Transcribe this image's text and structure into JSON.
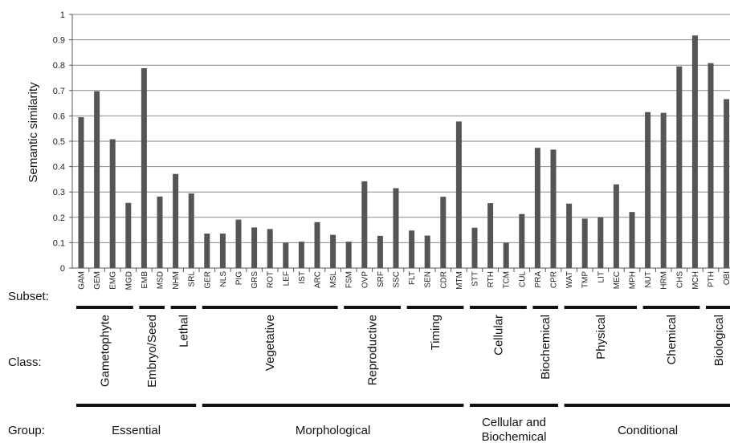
{
  "chart_data": {
    "type": "bar",
    "ylabel": "Semantic similarity",
    "ylim": [
      0,
      1
    ],
    "yticks": [
      "0",
      "0.1",
      "0.2",
      "0.3",
      "0.4",
      "0.5",
      "0.6",
      "0.7",
      "0.8",
      "0.9",
      "1"
    ],
    "grid": true,
    "bar_color": "#555555",
    "categories": [
      "GAM",
      "GEM",
      "EMG",
      "MGD",
      "EMB",
      "MSD",
      "NHM",
      "SRL",
      "GER",
      "NLS",
      "PIG",
      "GRS",
      "ROT",
      "LEF",
      "IST",
      "ARC",
      "MSL",
      "FSM",
      "OVP",
      "SRF",
      "SSC",
      "FLT",
      "SEN",
      "CDR",
      "MTM",
      "STT",
      "RTH",
      "TCM",
      "CUL",
      "PRA",
      "CPR",
      "WAT",
      "TMP",
      "LIT",
      "MEC",
      "MPH",
      "NUT",
      "HRM",
      "CHS",
      "MCH",
      "PTH",
      "OBI"
    ],
    "values": [
      0.595,
      0.697,
      0.508,
      0.257,
      0.788,
      0.282,
      0.371,
      0.294,
      0.136,
      0.136,
      0.191,
      0.16,
      0.154,
      0.1,
      0.104,
      0.181,
      0.131,
      0.104,
      0.342,
      0.127,
      0.315,
      0.148,
      0.128,
      0.281,
      0.578,
      0.159,
      0.256,
      0.1,
      0.213,
      0.474,
      0.467,
      0.254,
      0.195,
      0.2,
      0.33,
      0.221,
      0.615,
      0.612,
      0.795,
      0.917,
      0.808,
      0.666
    ]
  },
  "row_labels": {
    "subset": "Subset:",
    "class": "Class:",
    "group": "Group:"
  },
  "classes": [
    {
      "label": "Gametophyte",
      "from": 0,
      "to": 3
    },
    {
      "label": "Embryo/Seed",
      "from": 4,
      "to": 5
    },
    {
      "label": "Lethal",
      "from": 6,
      "to": 7
    },
    {
      "label": "Vegetative",
      "from": 8,
      "to": 16
    },
    {
      "label": "Reproductive",
      "from": 17,
      "to": 20
    },
    {
      "label": "Timing",
      "from": 21,
      "to": 24
    },
    {
      "label": "Cellular",
      "from": 25,
      "to": 28
    },
    {
      "label": "Biochemical",
      "from": 29,
      "to": 30
    },
    {
      "label": "Physical",
      "from": 31,
      "to": 35
    },
    {
      "label": "Chemical",
      "from": 36,
      "to": 39
    },
    {
      "label": "Biological",
      "from": 40,
      "to": 41
    }
  ],
  "groups": [
    {
      "label": "Essential",
      "from": 0,
      "to": 7
    },
    {
      "label": "Morphological",
      "from": 8,
      "to": 24
    },
    {
      "label": "Cellular and Biochemical",
      "from": 25,
      "to": 30
    },
    {
      "label": "Conditional",
      "from": 31,
      "to": 41
    }
  ]
}
